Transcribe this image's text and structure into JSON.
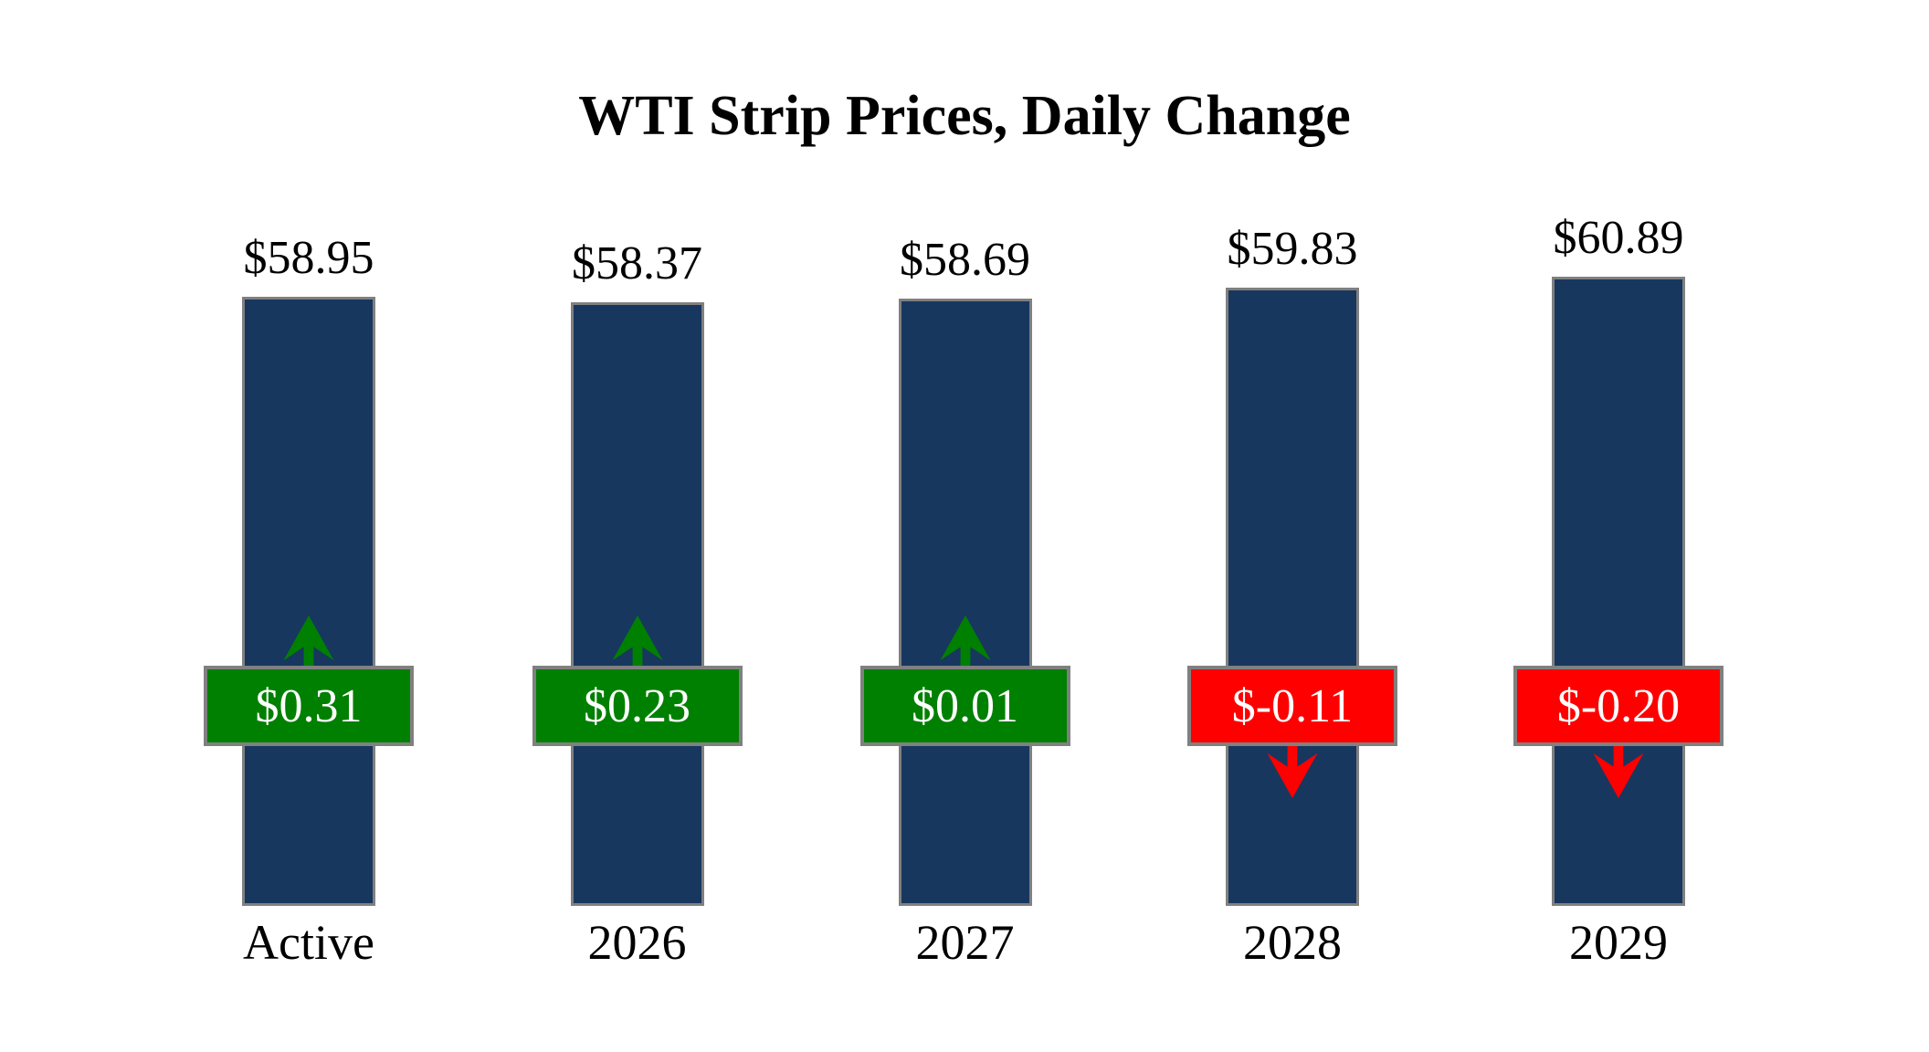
{
  "title": "WTI Strip Prices, Daily Change",
  "chart_data": {
    "type": "bar",
    "title": "WTI Strip Prices, Daily Change",
    "categories": [
      "Active",
      "2026",
      "2027",
      "2028",
      "2029"
    ],
    "series": [
      {
        "name": "WTI strip price ($/bbl)",
        "values": [
          58.95,
          58.37,
          58.69,
          59.83,
          60.89
        ]
      },
      {
        "name": "Daily change ($/bbl)",
        "values": [
          0.31,
          0.23,
          0.01,
          -0.11,
          -0.2
        ]
      }
    ],
    "bars": [
      {
        "category": "Active",
        "price": 58.95,
        "price_label": "$58.95",
        "change": 0.31,
        "change_label": "$0.31",
        "direction": "up"
      },
      {
        "category": "2026",
        "price": 58.37,
        "price_label": "$58.37",
        "change": 0.23,
        "change_label": "$0.23",
        "direction": "up"
      },
      {
        "category": "2027",
        "price": 58.69,
        "price_label": "$58.69",
        "change": 0.01,
        "change_label": "$0.01",
        "direction": "up"
      },
      {
        "category": "2028",
        "price": 59.83,
        "price_label": "$59.83",
        "change": -0.11,
        "change_label": "$-0.11",
        "direction": "down"
      },
      {
        "category": "2029",
        "price": 60.89,
        "price_label": "$60.89",
        "change": -0.2,
        "change_label": "$-0.20",
        "direction": "down"
      }
    ],
    "legend": "none",
    "grid": false,
    "axes_visible": false
  },
  "colors": {
    "background": "#FFFFFF",
    "text": "#000000",
    "bar_fill": "#17375E",
    "bar_border": "#808080",
    "box_border": "#808080",
    "box_text": "#FFFFFF",
    "positive": "#008000",
    "negative": "#FF0000"
  }
}
